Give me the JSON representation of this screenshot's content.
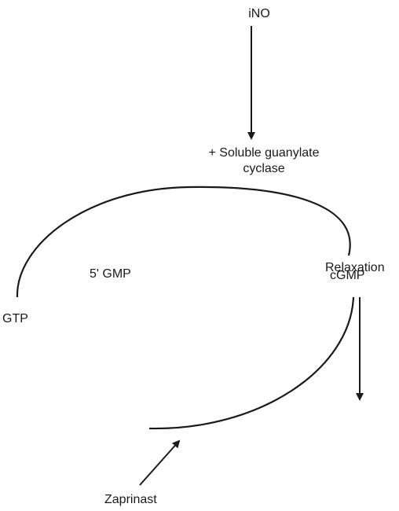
{
  "nodes": {
    "ino": "iNO",
    "sgc_line1": "+ Soluble guanylate",
    "sgc_line2": "cyclase",
    "cgmp": "cGMP",
    "gtp": "GTP",
    "five_gmp": "5' GMP",
    "relaxation": "Relaxation",
    "zaprinast": "Zaprinast"
  },
  "colors": {
    "stroke": "#1a1a1a",
    "background": "#ffffff"
  }
}
